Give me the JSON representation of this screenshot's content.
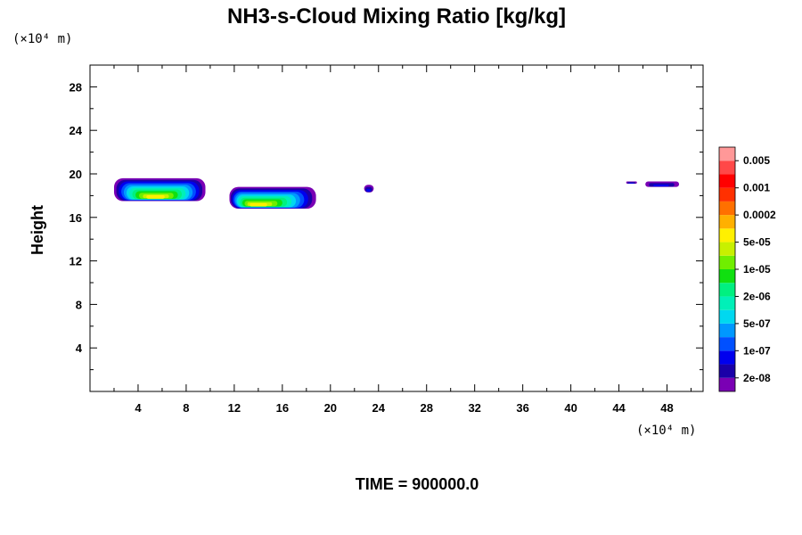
{
  "chart_data": {
    "type": "heatmap",
    "title": "NH3-s-Cloud Mixing Ratio [kg/kg]",
    "ylabel": "Height",
    "xlabel": "",
    "x_unit": "(×10⁴ m)",
    "y_unit": "(×10⁴ m)",
    "xlim": [
      0,
      51
    ],
    "ylim": [
      0,
      30
    ],
    "x_ticks": [
      4,
      8,
      12,
      16,
      20,
      24,
      28,
      32,
      36,
      40,
      44,
      48
    ],
    "y_ticks": [
      4,
      8,
      12,
      16,
      20,
      24,
      28
    ],
    "x_tick_labels": [
      "4",
      "8",
      "12",
      "16",
      "20",
      "24",
      "28",
      "32",
      "36",
      "40",
      "44",
      "48"
    ],
    "y_tick_labels": [
      "4",
      "8",
      "12",
      "16",
      "20",
      "24",
      "28"
    ],
    "colorbar": {
      "colors": [
        "#7a00b4",
        "#1a00a8",
        "#0000ee",
        "#0050ff",
        "#0098ff",
        "#00d8f0",
        "#00f0b8",
        "#00f080",
        "#10e010",
        "#70ee00",
        "#c8f000",
        "#fff000",
        "#ffb000",
        "#ff7000",
        "#ff3000",
        "#ff0000",
        "#ff4848",
        "#ff9898"
      ],
      "labels": [
        "2e-08",
        "1e-07",
        "5e-07",
        "2e-06",
        "1e-05",
        "5e-05",
        "0.0002",
        "0.001",
        "0.005"
      ]
    },
    "cloud_regions": [
      {
        "x_start": 2.0,
        "x_end": 9.6,
        "y_bottom": 17.5,
        "y_top": 19.6,
        "peak_level": 11
      },
      {
        "x_start": 11.6,
        "x_end": 18.8,
        "y_bottom": 16.8,
        "y_top": 18.8,
        "peak_level": 11
      },
      {
        "x_start": 22.8,
        "x_end": 23.6,
        "y_bottom": 18.3,
        "y_top": 19.0,
        "peak_level": 2
      },
      {
        "x_start": 46.2,
        "x_end": 49.0,
        "y_bottom": 18.8,
        "y_top": 19.3,
        "peak_level": 2
      },
      {
        "x_start": 44.6,
        "x_end": 45.5,
        "y_bottom": 19.1,
        "y_top": 19.3,
        "peak_level": 2
      }
    ]
  },
  "footer": {
    "time_label": "TIME = 900000.0"
  }
}
